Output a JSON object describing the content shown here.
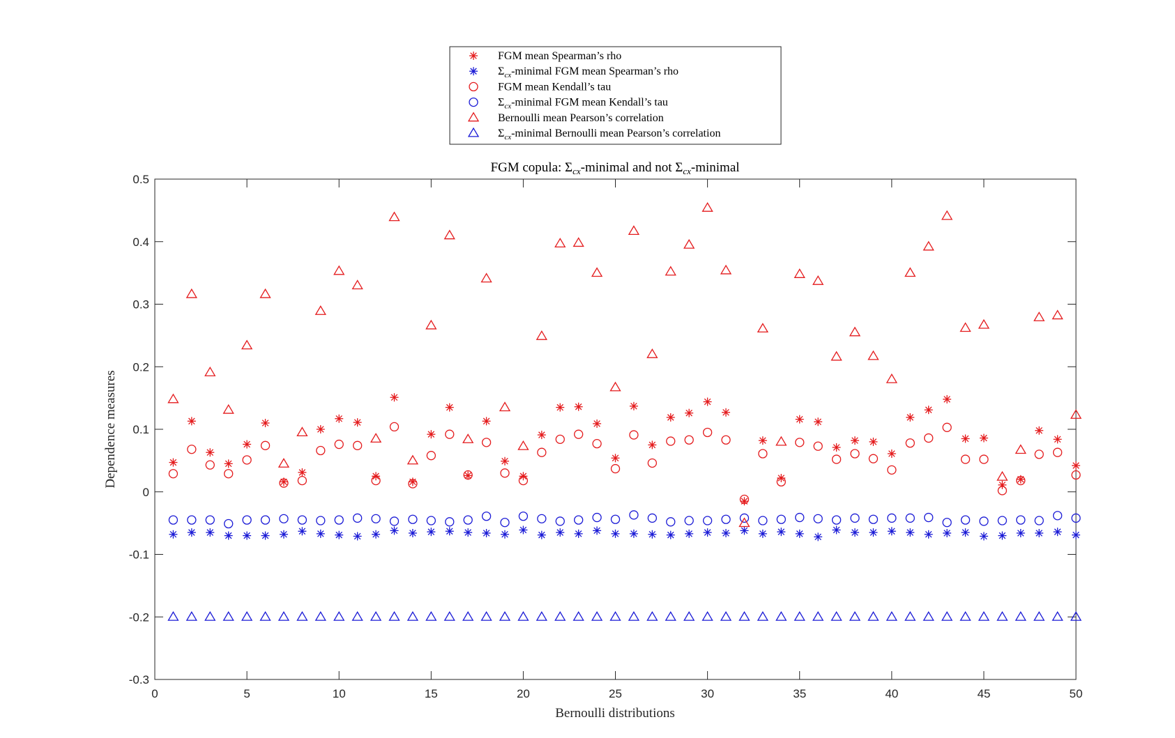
{
  "chart_data": {
    "type": "scatter",
    "title": {
      "pre": "FGM copula: ",
      "sym1": "Σ",
      "sub1": "cx",
      "mid": "-minimal and not ",
      "sym2": "Σ",
      "sub2": "cx",
      "post": "-minimal"
    },
    "xlabel": "Bernoulli distributions",
    "ylabel": "Dependence measures",
    "xlim": [
      0,
      50
    ],
    "ylim": [
      -0.3,
      0.5
    ],
    "xticks": [
      0,
      5,
      10,
      15,
      20,
      25,
      30,
      35,
      40,
      45,
      50
    ],
    "yticks": [
      -0.3,
      -0.2,
      -0.1,
      0,
      0.1,
      0.2,
      0.3,
      0.4,
      0.5
    ],
    "xtick_labels": [
      "0",
      "5",
      "10",
      "15",
      "20",
      "25",
      "30",
      "35",
      "40",
      "45",
      "50"
    ],
    "ytick_labels": [
      "-0.3",
      "-0.2",
      "-0.1",
      "0",
      "0.1",
      "0.2",
      "0.3",
      "0.4",
      "0.5"
    ],
    "grid": false,
    "legend_position": "top-center, outside above plot",
    "x": [
      1,
      2,
      3,
      4,
      5,
      6,
      7,
      8,
      9,
      10,
      11,
      12,
      13,
      14,
      15,
      16,
      17,
      18,
      19,
      20,
      21,
      22,
      23,
      24,
      25,
      26,
      27,
      28,
      29,
      30,
      31,
      32,
      33,
      34,
      35,
      36,
      37,
      38,
      39,
      40,
      41,
      42,
      43,
      44,
      45,
      46,
      47,
      48,
      49,
      50
    ],
    "series": [
      {
        "name": "FGM mean Spearman's rho",
        "legend": {
          "pre": "",
          "sym": "",
          "sub": "",
          "post": "FGM mean Spearman’s rho"
        },
        "marker": "asterisk",
        "color": "#e41a1c",
        "values": [
          0.047,
          0.113,
          0.063,
          0.045,
          0.076,
          0.11,
          0.016,
          0.031,
          0.1,
          0.117,
          0.111,
          0.025,
          0.151,
          0.016,
          0.092,
          0.135,
          0.026,
          0.113,
          0.049,
          0.025,
          0.091,
          0.135,
          0.136,
          0.109,
          0.054,
          0.137,
          0.075,
          0.119,
          0.126,
          0.144,
          0.127,
          -0.015,
          0.082,
          0.022,
          0.116,
          0.112,
          0.071,
          0.082,
          0.08,
          0.061,
          0.119,
          0.131,
          0.148,
          0.085,
          0.086,
          0.011,
          0.02,
          0.098,
          0.084,
          0.042
        ]
      },
      {
        "name": "Σcx-minimal FGM mean Spearman's rho",
        "legend": {
          "pre": "",
          "sym": "Σ",
          "sub": "cx",
          "post": "-minimal FGM mean Spearman’s rho"
        },
        "marker": "asterisk",
        "color": "#1a1ad6",
        "values": [
          -0.068,
          -0.065,
          -0.065,
          -0.07,
          -0.07,
          -0.07,
          -0.068,
          -0.063,
          -0.067,
          -0.069,
          -0.071,
          -0.068,
          -0.062,
          -0.066,
          -0.064,
          -0.063,
          -0.065,
          -0.066,
          -0.068,
          -0.061,
          -0.069,
          -0.065,
          -0.067,
          -0.062,
          -0.067,
          -0.067,
          -0.068,
          -0.069,
          -0.067,
          -0.065,
          -0.066,
          -0.062,
          -0.067,
          -0.064,
          -0.067,
          -0.072,
          -0.061,
          -0.065,
          -0.065,
          -0.063,
          -0.065,
          -0.068,
          -0.066,
          -0.065,
          -0.071,
          -0.07,
          -0.066,
          -0.066,
          -0.064,
          -0.069
        ]
      },
      {
        "name": "FGM mean Kendall's tau",
        "legend": {
          "pre": "",
          "sym": "",
          "sub": "",
          "post": "FGM mean Kendall’s tau"
        },
        "marker": "circle",
        "color": "#e41a1c",
        "values": [
          0.029,
          0.068,
          0.043,
          0.029,
          0.051,
          0.074,
          0.014,
          0.018,
          0.066,
          0.076,
          0.074,
          0.018,
          0.104,
          0.013,
          0.058,
          0.092,
          0.027,
          0.079,
          0.03,
          0.018,
          0.063,
          0.084,
          0.092,
          0.077,
          0.037,
          0.091,
          0.046,
          0.081,
          0.083,
          0.095,
          0.083,
          -0.012,
          0.061,
          0.016,
          0.079,
          0.073,
          0.052,
          0.061,
          0.053,
          0.035,
          0.078,
          0.086,
          0.103,
          0.052,
          0.052,
          0.002,
          0.018,
          0.06,
          0.063,
          0.027
        ]
      },
      {
        "name": "Σcx-minimal FGM mean Kendall's tau",
        "legend": {
          "pre": "",
          "sym": "Σ",
          "sub": "cx",
          "post": "-minimal FGM mean Kendall’s tau"
        },
        "marker": "circle",
        "color": "#1a1ad6",
        "values": [
          -0.045,
          -0.045,
          -0.045,
          -0.051,
          -0.045,
          -0.045,
          -0.043,
          -0.045,
          -0.046,
          -0.045,
          -0.042,
          -0.043,
          -0.047,
          -0.044,
          -0.046,
          -0.048,
          -0.045,
          -0.039,
          -0.049,
          -0.039,
          -0.043,
          -0.047,
          -0.045,
          -0.041,
          -0.044,
          -0.037,
          -0.042,
          -0.048,
          -0.046,
          -0.046,
          -0.044,
          -0.042,
          -0.046,
          -0.044,
          -0.041,
          -0.043,
          -0.045,
          -0.042,
          -0.044,
          -0.042,
          -0.042,
          -0.041,
          -0.049,
          -0.045,
          -0.047,
          -0.046,
          -0.045,
          -0.046,
          -0.038,
          -0.042
        ]
      },
      {
        "name": "Bernoulli mean Pearson's correlation",
        "legend": {
          "pre": "",
          "sym": "",
          "sub": "",
          "post": "Bernoulli mean Pearson’s correlation"
        },
        "marker": "triangle",
        "color": "#e41a1c",
        "values": [
          0.148,
          0.316,
          0.191,
          0.131,
          0.234,
          0.316,
          0.045,
          0.095,
          0.289,
          0.353,
          0.33,
          0.085,
          0.439,
          0.05,
          0.266,
          0.41,
          0.084,
          0.341,
          0.135,
          0.073,
          0.249,
          0.397,
          0.398,
          0.35,
          0.167,
          0.417,
          0.22,
          0.352,
          0.395,
          0.454,
          0.354,
          -0.05,
          0.261,
          0.08,
          0.348,
          0.337,
          0.216,
          0.255,
          0.217,
          0.18,
          0.35,
          0.392,
          0.441,
          0.262,
          0.267,
          0.024,
          0.067,
          0.279,
          0.282,
          0.123
        ]
      },
      {
        "name": "Σcx-minimal Bernoulli mean Pearson's correlation",
        "legend": {
          "pre": "",
          "sym": "Σ",
          "sub": "cx",
          "post": "-minimal Bernoulli mean Pearson’s correlation"
        },
        "marker": "triangle",
        "color": "#1a1ad6",
        "values": [
          -0.2,
          -0.2,
          -0.2,
          -0.2,
          -0.2,
          -0.2,
          -0.2,
          -0.2,
          -0.2,
          -0.2,
          -0.2,
          -0.2,
          -0.2,
          -0.2,
          -0.2,
          -0.2,
          -0.2,
          -0.2,
          -0.2,
          -0.2,
          -0.2,
          -0.2,
          -0.2,
          -0.2,
          -0.2,
          -0.2,
          -0.2,
          -0.2,
          -0.2,
          -0.2,
          -0.2,
          -0.2,
          -0.2,
          -0.2,
          -0.2,
          -0.2,
          -0.2,
          -0.2,
          -0.2,
          -0.2,
          -0.2,
          -0.2,
          -0.2,
          -0.2,
          -0.2,
          -0.2,
          -0.2,
          -0.2,
          -0.2,
          -0.2
        ]
      }
    ]
  }
}
